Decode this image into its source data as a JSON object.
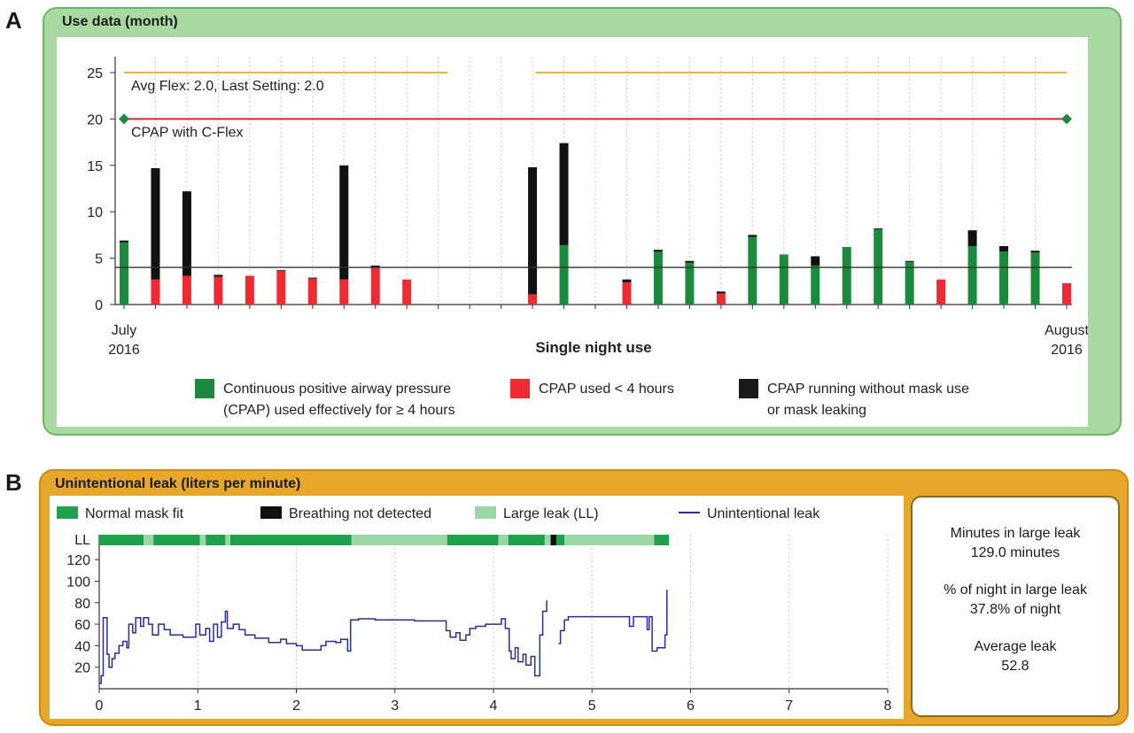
{
  "panel_a": {
    "letter": "A",
    "title": "Use data (month)",
    "chart_data": {
      "type": "bar",
      "stacked": true,
      "xlabel": "Single night use",
      "x_start_label": [
        "July",
        "2016"
      ],
      "x_end_label": [
        "August",
        "2016"
      ],
      "ylim": [
        0,
        25
      ],
      "yticks": [
        0,
        5,
        10,
        15,
        20,
        25
      ],
      "threshold_line": 4,
      "nights": 31,
      "annotations": [
        {
          "text": "Avg Flex: 2.0, Last Setting: 2.0",
          "line_value": 25,
          "color": "#e8b54a"
        },
        {
          "text": "CPAP with C-Flex",
          "line_value": 20,
          "color": "#e0202a"
        }
      ],
      "series": [
        {
          "name": "Continuous positive airway pressure (CPAP) used effectively for ≥ 4 hours",
          "color": "#1b8a3c"
        },
        {
          "name": "CPAP used < 4 hours",
          "color": "#ee2a33"
        },
        {
          "name": "CPAP running without mask use or mask leaking",
          "color": "#111111"
        }
      ],
      "bars": [
        {
          "night": 1,
          "base": 6.7,
          "type": "green",
          "black": 0.2
        },
        {
          "night": 2,
          "base": 2.7,
          "type": "red",
          "black": 12.0
        },
        {
          "night": 3,
          "base": 3.1,
          "type": "red",
          "black": 9.1
        },
        {
          "night": 4,
          "base": 3.0,
          "type": "red",
          "black": 0.2
        },
        {
          "night": 5,
          "base": 3.1,
          "type": "red",
          "black": 0
        },
        {
          "night": 6,
          "base": 3.6,
          "type": "red",
          "black": 0.1
        },
        {
          "night": 7,
          "base": 2.8,
          "type": "red",
          "black": 0.1
        },
        {
          "night": 8,
          "base": 2.7,
          "type": "red",
          "black": 12.3
        },
        {
          "night": 9,
          "base": 4.0,
          "type": "red",
          "black": 0.2
        },
        {
          "night": 10,
          "base": 2.7,
          "type": "red",
          "black": 0
        },
        {
          "night": 14,
          "base": 1.1,
          "type": "red",
          "black": 13.7
        },
        {
          "night": 15,
          "base": 6.4,
          "type": "green",
          "black": 11.0
        },
        {
          "night": 17,
          "base": 2.4,
          "type": "red",
          "black": 0.3
        },
        {
          "night": 18,
          "base": 5.7,
          "type": "green",
          "black": 0.2
        },
        {
          "night": 19,
          "base": 4.5,
          "type": "green",
          "black": 0.2
        },
        {
          "night": 20,
          "base": 1.2,
          "type": "red",
          "black": 0.2
        },
        {
          "night": 21,
          "base": 7.3,
          "type": "green",
          "black": 0.2
        },
        {
          "night": 22,
          "base": 5.4,
          "type": "green",
          "black": 0
        },
        {
          "night": 23,
          "base": 4.2,
          "type": "green",
          "black": 1.0
        },
        {
          "night": 24,
          "base": 6.2,
          "type": "green",
          "black": 0
        },
        {
          "night": 25,
          "base": 8.1,
          "type": "green",
          "black": 0.1
        },
        {
          "night": 26,
          "base": 4.6,
          "type": "green",
          "black": 0.1
        },
        {
          "night": 27,
          "base": 2.7,
          "type": "red",
          "black": 0
        },
        {
          "night": 28,
          "base": 6.3,
          "type": "green",
          "black": 1.7
        },
        {
          "night": 29,
          "base": 5.7,
          "type": "green",
          "black": 0.6
        },
        {
          "night": 30,
          "base": 5.6,
          "type": "green",
          "black": 0.2
        },
        {
          "night": 31,
          "base": 2.3,
          "type": "red",
          "black": 0
        }
      ]
    },
    "legend": [
      {
        "color": "#1b8a3c",
        "lines": [
          "Continuous positive airway pressure",
          "(CPAP) used effectively for ≥ 4 hours"
        ]
      },
      {
        "color": "#ee2a33",
        "lines": [
          "CPAP used < 4 hours"
        ]
      },
      {
        "color": "#1a1a1a",
        "lines": [
          "CPAP running without mask use",
          "or mask leaking"
        ]
      }
    ]
  },
  "panel_b": {
    "letter": "B",
    "title": "Unintentional leak (liters per minute)",
    "legend": [
      {
        "label": "Normal mask fit",
        "color": "#1fa04a",
        "kind": "box"
      },
      {
        "label": "Breathing not detected",
        "color": "#111111",
        "kind": "box"
      },
      {
        "label": "Large leak (LL)",
        "color": "#9bd6a6",
        "kind": "box"
      },
      {
        "label": "Unintentional leak",
        "color": "#2b2e8c",
        "kind": "line"
      }
    ],
    "chart_data": {
      "type": "line",
      "xlim": [
        0,
        8
      ],
      "xticks": [
        0,
        1,
        2,
        3,
        4,
        5,
        6,
        7,
        8
      ],
      "ylim": [
        0,
        130
      ],
      "yticks": [
        20,
        40,
        60,
        80,
        100,
        120
      ],
      "ll_label": "LL",
      "status_segments": [
        {
          "start": 0.0,
          "end": 0.45,
          "state": "normal"
        },
        {
          "start": 0.45,
          "end": 0.55,
          "state": "large"
        },
        {
          "start": 0.55,
          "end": 1.02,
          "state": "normal"
        },
        {
          "start": 1.02,
          "end": 1.08,
          "state": "large"
        },
        {
          "start": 1.08,
          "end": 1.28,
          "state": "normal"
        },
        {
          "start": 1.28,
          "end": 1.33,
          "state": "large"
        },
        {
          "start": 1.33,
          "end": 2.56,
          "state": "normal"
        },
        {
          "start": 2.56,
          "end": 3.53,
          "state": "large"
        },
        {
          "start": 3.53,
          "end": 4.05,
          "state": "normal"
        },
        {
          "start": 4.05,
          "end": 4.15,
          "state": "large"
        },
        {
          "start": 4.15,
          "end": 4.52,
          "state": "normal"
        },
        {
          "start": 4.52,
          "end": 4.58,
          "state": "large"
        },
        {
          "start": 4.58,
          "end": 4.64,
          "state": "none"
        },
        {
          "start": 4.64,
          "end": 4.72,
          "state": "normal"
        },
        {
          "start": 4.72,
          "end": 5.63,
          "state": "large"
        },
        {
          "start": 5.63,
          "end": 5.78,
          "state": "normal"
        }
      ],
      "series": [
        {
          "name": "Unintentional leak",
          "segments": [
            [
              [
                0,
                5
              ],
              [
                0.02,
                5
              ],
              [
                0.02,
                12
              ],
              [
                0.04,
                12
              ],
              [
                0.04,
                66
              ],
              [
                0.08,
                66
              ],
              [
                0.08,
                32
              ],
              [
                0.1,
                32
              ],
              [
                0.1,
                20
              ],
              [
                0.13,
                20
              ],
              [
                0.13,
                28
              ],
              [
                0.16,
                28
              ],
              [
                0.16,
                33
              ],
              [
                0.2,
                33
              ],
              [
                0.2,
                40
              ],
              [
                0.24,
                40
              ],
              [
                0.24,
                44
              ],
              [
                0.28,
                44
              ],
              [
                0.28,
                38
              ],
              [
                0.3,
                38
              ],
              [
                0.3,
                60
              ],
              [
                0.34,
                60
              ],
              [
                0.34,
                52
              ],
              [
                0.37,
                52
              ],
              [
                0.37,
                66
              ],
              [
                0.42,
                66
              ],
              [
                0.42,
                58
              ],
              [
                0.45,
                58
              ],
              [
                0.45,
                66
              ],
              [
                0.5,
                66
              ],
              [
                0.5,
                60
              ],
              [
                0.54,
                60
              ],
              [
                0.54,
                50
              ],
              [
                0.6,
                50
              ],
              [
                0.6,
                60
              ],
              [
                0.66,
                60
              ],
              [
                0.66,
                55
              ],
              [
                0.72,
                55
              ],
              [
                0.72,
                50
              ],
              [
                0.85,
                50
              ],
              [
                0.85,
                48
              ],
              [
                0.98,
                48
              ],
              [
                0.98,
                60
              ],
              [
                1.02,
                60
              ],
              [
                1.02,
                50
              ],
              [
                1.08,
                50
              ],
              [
                1.08,
                56
              ],
              [
                1.12,
                56
              ],
              [
                1.12,
                44
              ],
              [
                1.16,
                44
              ],
              [
                1.16,
                60
              ],
              [
                1.2,
                60
              ],
              [
                1.2,
                48
              ],
              [
                1.24,
                48
              ],
              [
                1.24,
                62
              ],
              [
                1.28,
                62
              ],
              [
                1.28,
                72
              ],
              [
                1.3,
                72
              ],
              [
                1.3,
                56
              ],
              [
                1.36,
                56
              ],
              [
                1.36,
                60
              ],
              [
                1.42,
                60
              ],
              [
                1.42,
                55
              ],
              [
                1.48,
                55
              ],
              [
                1.48,
                50
              ],
              [
                1.58,
                50
              ],
              [
                1.58,
                47
              ],
              [
                1.72,
                47
              ],
              [
                1.72,
                43
              ],
              [
                1.84,
                43
              ],
              [
                1.84,
                46
              ],
              [
                1.9,
                46
              ],
              [
                1.9,
                42
              ],
              [
                2.0,
                42
              ],
              [
                2.0,
                40
              ],
              [
                2.06,
                40
              ],
              [
                2.06,
                36
              ],
              [
                2.25,
                36
              ],
              [
                2.25,
                40
              ],
              [
                2.3,
                40
              ],
              [
                2.3,
                44
              ],
              [
                2.4,
                44
              ],
              [
                2.4,
                43
              ],
              [
                2.45,
                43
              ],
              [
                2.45,
                46
              ],
              [
                2.52,
                46
              ],
              [
                2.52,
                35
              ],
              [
                2.55,
                35
              ],
              [
                2.55,
                64
              ],
              [
                2.63,
                64
              ],
              [
                2.63,
                65
              ],
              [
                2.8,
                65
              ],
              [
                2.8,
                64
              ],
              [
                3.2,
                64
              ],
              [
                3.2,
                63
              ],
              [
                3.52,
                63
              ],
              [
                3.52,
                54
              ],
              [
                3.56,
                54
              ],
              [
                3.56,
                48
              ],
              [
                3.62,
                48
              ],
              [
                3.62,
                52
              ],
              [
                3.66,
                52
              ],
              [
                3.66,
                45
              ],
              [
                3.72,
                45
              ],
              [
                3.72,
                50
              ],
              [
                3.76,
                50
              ],
              [
                3.76,
                56
              ],
              [
                3.82,
                56
              ],
              [
                3.82,
                58
              ],
              [
                3.92,
                58
              ],
              [
                3.92,
                60
              ],
              [
                4.08,
                60
              ],
              [
                4.08,
                65
              ],
              [
                4.12,
                65
              ],
              [
                4.12,
                56
              ],
              [
                4.16,
                56
              ],
              [
                4.16,
                35
              ],
              [
                4.18,
                35
              ],
              [
                4.18,
                28
              ],
              [
                4.22,
                28
              ],
              [
                4.22,
                38
              ],
              [
                4.25,
                38
              ],
              [
                4.25,
                25
              ],
              [
                4.3,
                25
              ],
              [
                4.3,
                32
              ],
              [
                4.33,
                32
              ],
              [
                4.33,
                22
              ],
              [
                4.38,
                22
              ],
              [
                4.38,
                30
              ],
              [
                4.42,
                30
              ],
              [
                4.42,
                12
              ],
              [
                4.47,
                12
              ],
              [
                4.47,
                50
              ],
              [
                4.5,
                50
              ],
              [
                4.5,
                72
              ],
              [
                4.54,
                72
              ],
              [
                4.54,
                82
              ]
            ],
            [
              [
                4.66,
                42
              ],
              [
                4.68,
                42
              ],
              [
                4.68,
                54
              ],
              [
                4.72,
                54
              ],
              [
                4.72,
                64
              ],
              [
                4.76,
                64
              ],
              [
                4.76,
                67
              ],
              [
                5.38,
                67
              ],
              [
                5.38,
                58
              ],
              [
                5.42,
                58
              ],
              [
                5.42,
                67
              ],
              [
                5.56,
                67
              ],
              [
                5.56,
                55
              ],
              [
                5.58,
                55
              ],
              [
                5.58,
                67
              ],
              [
                5.61,
                67
              ],
              [
                5.61,
                35
              ],
              [
                5.66,
                35
              ],
              [
                5.66,
                38
              ],
              [
                5.74,
                38
              ],
              [
                5.74,
                50
              ],
              [
                5.76,
                50
              ],
              [
                5.76,
                92
              ]
            ]
          ]
        }
      ]
    },
    "stats": [
      {
        "label": "Minutes in large leak",
        "value": "129.0 minutes"
      },
      {
        "label": "% of night in large leak",
        "value": "37.8% of night"
      },
      {
        "label": "Average leak",
        "value": "52.8"
      }
    ]
  }
}
